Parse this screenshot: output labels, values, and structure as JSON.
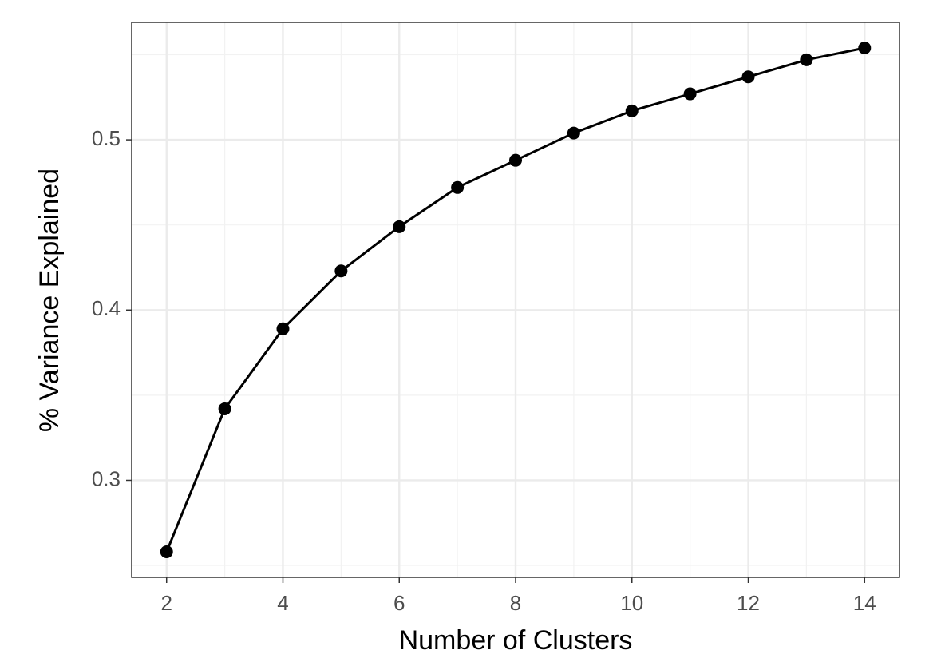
{
  "chart_data": {
    "type": "line",
    "x_label": "Number of Clusters",
    "y_label": "% Variance Explained",
    "x": [
      2,
      3,
      4,
      5,
      6,
      7,
      8,
      9,
      10,
      11,
      12,
      13,
      14
    ],
    "series": [
      {
        "color": "#000000",
        "values": [
          0.258,
          0.342,
          0.389,
          0.423,
          0.449,
          0.472,
          0.488,
          0.504,
          0.517,
          0.527,
          0.537,
          0.547,
          0.554
        ]
      }
    ],
    "xlim": [
      1.4,
      14.6
    ],
    "xticks": [
      2,
      4,
      6,
      8,
      10,
      12,
      14
    ],
    "ylim": [
      0.243,
      0.569
    ],
    "yticks": [
      0.3,
      0.4,
      0.5
    ],
    "grid": true,
    "markers": true
  }
}
